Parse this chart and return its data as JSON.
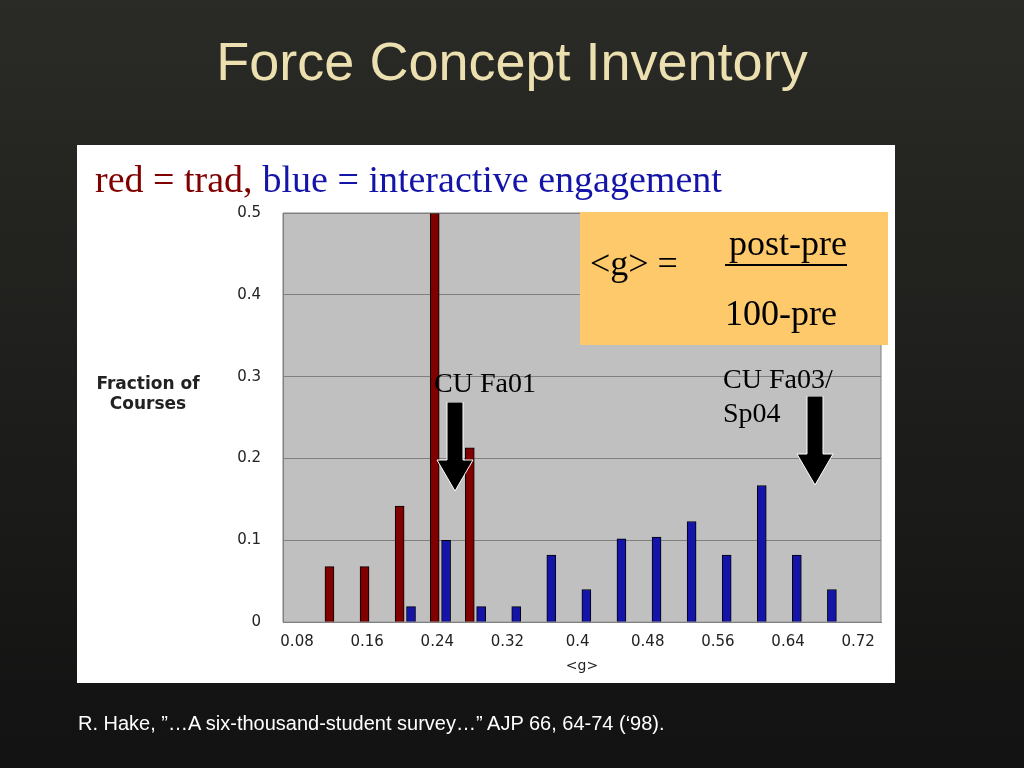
{
  "chart_data": {
    "type": "bar",
    "title": "Force Concept Inventory",
    "xlabel": "<g>",
    "ylabel": "Fraction of Courses",
    "series": [
      {
        "name": "red = trad,",
        "color": "#800000",
        "x": [
          0.117,
          0.157,
          0.197,
          0.237,
          0.277
        ],
        "values": [
          0.068,
          0.068,
          0.142,
          0.5,
          0.213
        ]
      },
      {
        "name": "blue = interactive engagement",
        "color": "#1414a8",
        "x": [
          0.21,
          0.25,
          0.29,
          0.33,
          0.37,
          0.41,
          0.45,
          0.49,
          0.53,
          0.57,
          0.61,
          0.65,
          0.69
        ],
        "values": [
          0.019,
          0.1,
          0.019,
          0.019,
          0.082,
          0.04,
          0.102,
          0.104,
          0.123,
          0.082,
          0.167,
          0.082,
          0.04
        ]
      }
    ],
    "xlim": [
      0.064,
      0.746
    ],
    "xticks": [
      0.08,
      0.16,
      0.24,
      0.32,
      0.4,
      0.48,
      0.56,
      0.64,
      0.72
    ],
    "ylim": [
      0,
      0.5
    ],
    "yticks": [
      0,
      0.1,
      0.2,
      0.3,
      0.4,
      0.5
    ],
    "grid": "y",
    "legend": "top left",
    "annotations": [
      "CU Fa01",
      "CU Fa03/ Sp04",
      "<g> =",
      "post-pre",
      "100-pre",
      "R. Hake, ”…A six-thousand-student survey…” AJP 66, 64-74 (‘98)."
    ]
  }
}
